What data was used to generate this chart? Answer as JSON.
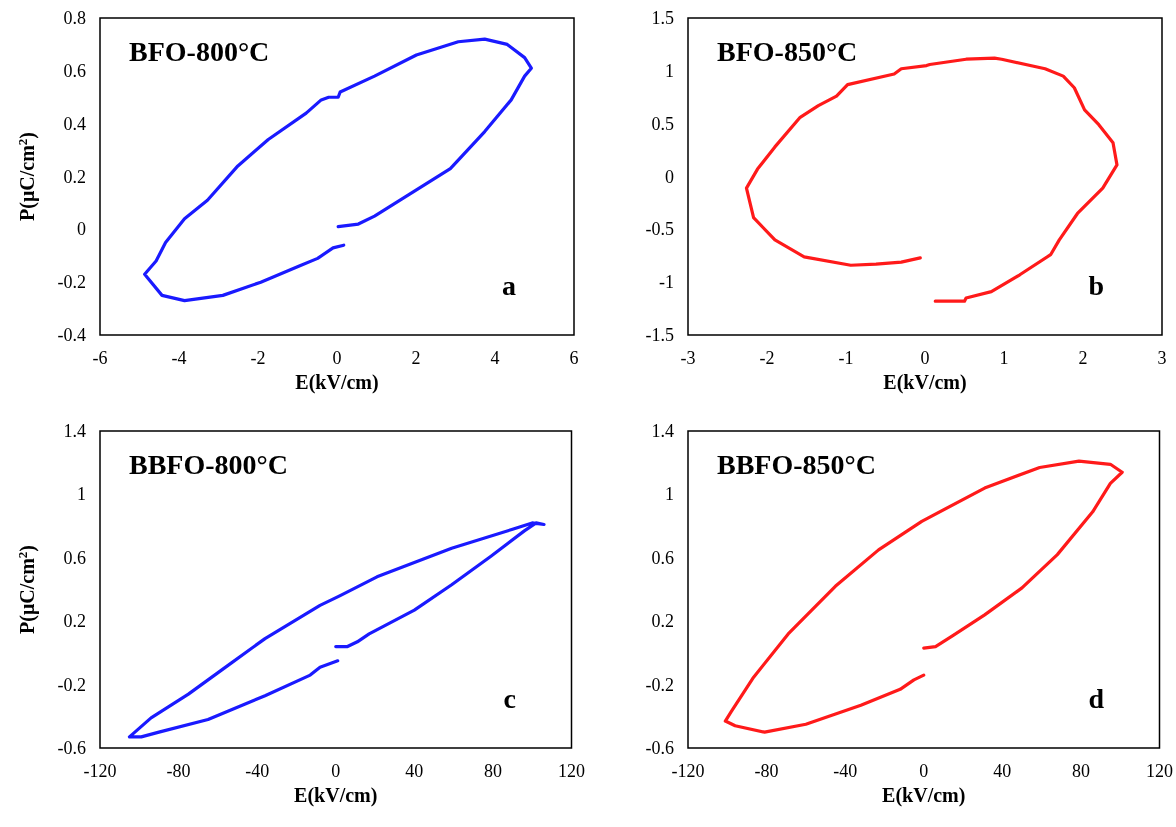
{
  "chart_data": [
    {
      "type": "line",
      "title": "BFO-800°C",
      "xlabel": "E(kV/cm)",
      "ylabel": "P(μC/cm$^{2}$)",
      "annotations": [
        "a"
      ],
      "marker": "none",
      "grid": false,
      "xlim": [
        -6,
        6
      ],
      "xticks": [
        -6,
        -4,
        -2,
        0,
        2,
        4,
        6
      ],
      "ylim": [
        -0.4,
        0.8
      ],
      "yticks": [
        -0.4,
        -0.2,
        0,
        0.2,
        0.4,
        0.6,
        0.8
      ],
      "series": [
        {
          "color": "#1a1aff",
          "x": [
            0.03,
            0.54,
            0.95,
            1.91,
            2.87,
            3.74,
            4.41,
            4.75,
            4.92,
            4.75,
            4.31,
            3.74,
            3.07,
            2.01,
            0.95,
            0.08,
            0.03,
            -0.21,
            -0.4,
            -0.78,
            -1.74,
            -2.51,
            -3.28,
            -3.86,
            -4.34,
            -4.58,
            -4.87,
            -4.43,
            -3.86,
            -2.89,
            -1.93,
            -0.97,
            -0.49,
            -0.1,
            0.17
          ],
          "values": [
            0.01,
            0.02,
            0.05,
            0.14,
            0.23,
            0.37,
            0.49,
            0.58,
            0.61,
            0.65,
            0.7,
            0.72,
            0.71,
            0.66,
            0.58,
            0.52,
            0.5,
            0.5,
            0.49,
            0.44,
            0.34,
            0.24,
            0.11,
            0.04,
            -0.05,
            -0.12,
            -0.17,
            -0.25,
            -0.27,
            -0.25,
            -0.2,
            -0.14,
            -0.11,
            -0.07,
            -0.06
          ]
        }
      ]
    },
    {
      "type": "line",
      "title": "BFO-850°C",
      "xlabel": "E(kV/cm)",
      "annotations": [
        "b"
      ],
      "marker": "none",
      "grid": false,
      "xlim": [
        -3,
        3
      ],
      "xticks": [
        -3,
        -2,
        -1,
        0,
        1,
        2,
        3
      ],
      "ylim": [
        -1.5,
        1.5
      ],
      "yticks": [
        -1.5,
        -1,
        -0.5,
        0,
        0.5,
        1,
        1.5
      ],
      "series": [
        {
          "color": "#ff1a1a",
          "x": [
            0.13,
            0.5,
            0.52,
            0.84,
            1.2,
            1.59,
            1.7,
            1.93,
            2.25,
            2.43,
            2.38,
            2.2,
            2.02,
            1.89,
            1.75,
            1.52,
            0.97,
            0.88,
            0.52,
            0.06,
            0.02,
            -0.3,
            -0.39,
            -0.98,
            -1.12,
            -1.35,
            -1.58,
            -1.9,
            -2.12,
            -2.26,
            -2.17,
            -1.9,
            -1.53,
            -0.94,
            -0.62,
            -0.3,
            -0.06
          ],
          "values": [
            -1.18,
            -1.18,
            -1.15,
            -1.09,
            -0.93,
            -0.74,
            -0.6,
            -0.35,
            -0.11,
            0.11,
            0.32,
            0.49,
            0.63,
            0.84,
            0.95,
            1.02,
            1.11,
            1.12,
            1.11,
            1.06,
            1.05,
            1.02,
            0.97,
            0.87,
            0.76,
            0.67,
            0.56,
            0.28,
            0.07,
            -0.11,
            -0.39,
            -0.6,
            -0.76,
            -0.84,
            -0.83,
            -0.81,
            -0.77
          ]
        }
      ]
    },
    {
      "type": "line",
      "title": "BBFO-800°C",
      "xlabel": "E(kV/cm)",
      "ylabel": "P(μC/cm$^{2}$)",
      "annotations": [
        "c"
      ],
      "marker": "none",
      "grid": false,
      "xlim": [
        -120,
        120
      ],
      "xticks": [
        -120,
        -80,
        -40,
        0,
        40,
        80,
        120
      ],
      "ylim": [
        -0.6,
        1.4
      ],
      "yticks": [
        -0.6,
        -0.2,
        0.2,
        0.6,
        1,
        1.4
      ],
      "series": [
        {
          "color": "#1a1aff",
          "x": [
            0,
            6,
            11,
            17,
            40,
            59,
            79,
            96,
            102,
            106,
            100,
            90,
            59,
            21,
            2,
            -8,
            -36,
            -55,
            -75,
            -94,
            -105,
            -99,
            -90,
            -65,
            -36,
            -13,
            -8,
            1
          ],
          "values": [
            0.04,
            0.04,
            0.07,
            0.12,
            0.27,
            0.43,
            0.61,
            0.77,
            0.82,
            0.81,
            0.82,
            0.78,
            0.66,
            0.48,
            0.36,
            0.3,
            0.09,
            -0.08,
            -0.26,
            -0.41,
            -0.53,
            -0.53,
            -0.5,
            -0.42,
            -0.27,
            -0.14,
            -0.09,
            -0.05
          ]
        }
      ]
    },
    {
      "type": "line",
      "title": "BBFO-850°C",
      "xlabel": "E(kV/cm)",
      "annotations": [
        "d"
      ],
      "marker": "none",
      "grid": false,
      "xlim": [
        -120,
        120
      ],
      "xticks": [
        -120,
        -80,
        -40,
        0,
        40,
        80,
        120
      ],
      "ylim": [
        -0.6,
        1.4
      ],
      "yticks": [
        -0.6,
        -0.2,
        0.2,
        0.6,
        1,
        1.4
      ],
      "series": [
        {
          "color": "#ff1a1a",
          "x": [
            0,
            6,
            15,
            31,
            50,
            68,
            86,
            95,
            101,
            95,
            79,
            59,
            31,
            -1,
            -23,
            -45,
            -69,
            -87,
            -98,
            -101,
            -96,
            -81,
            -60,
            -32,
            -12,
            -5,
            0
          ],
          "values": [
            0.03,
            0.04,
            0.11,
            0.24,
            0.41,
            0.62,
            0.89,
            1.07,
            1.14,
            1.19,
            1.21,
            1.17,
            1.04,
            0.83,
            0.65,
            0.42,
            0.12,
            -0.16,
            -0.37,
            -0.43,
            -0.46,
            -0.5,
            -0.45,
            -0.33,
            -0.23,
            -0.17,
            -0.14
          ]
        }
      ]
    }
  ]
}
